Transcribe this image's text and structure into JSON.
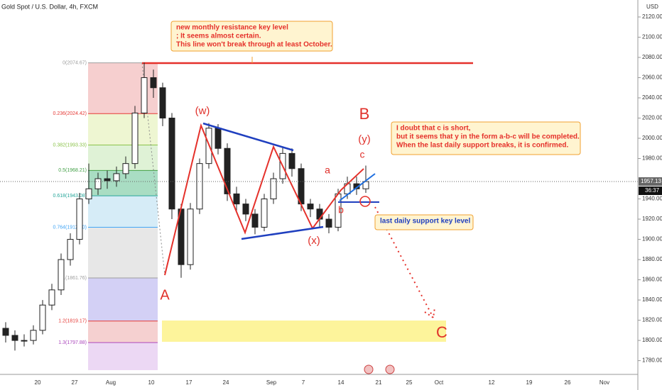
{
  "chart_data": {
    "type": "candlestick",
    "title": "Gold Spot / U.S. Dollar, 4h, FXCM",
    "currency": "USD",
    "ylim": [
      1770.6,
      2136.8
    ],
    "yticks": [
      {
        "value": 2120,
        "label": "2120.00"
      },
      {
        "value": 2100,
        "label": "2100.00"
      },
      {
        "value": 2080,
        "label": "2080.00"
      },
      {
        "value": 2060,
        "label": "2060.00"
      },
      {
        "value": 2040,
        "label": "2040.00"
      },
      {
        "value": 2020,
        "label": "2020.00"
      },
      {
        "value": 2000,
        "label": "2000.00"
      },
      {
        "value": 1980,
        "label": "1980.00"
      },
      {
        "value": 1940,
        "label": "1940.00"
      },
      {
        "value": 1920,
        "label": "1920.00"
      },
      {
        "value": 1900,
        "label": "1900.00"
      },
      {
        "value": 1880,
        "label": "1880.00"
      },
      {
        "value": 1860,
        "label": "1860.00"
      },
      {
        "value": 1840,
        "label": "1840.00"
      },
      {
        "value": 1820,
        "label": "1820.00"
      },
      {
        "value": 1800,
        "label": "1800.00"
      },
      {
        "value": 1780,
        "label": "1780.00"
      }
    ],
    "xticks": [
      "20",
      "27",
      "Aug",
      "10",
      "17",
      "24",
      "Sep",
      "7",
      "14",
      "21",
      "25",
      "Oct",
      "12",
      "19",
      "26",
      "Nov"
    ],
    "open": [
      1812,
      1805,
      1800,
      1800,
      1810,
      1835,
      1850,
      1880,
      1900,
      1940,
      1950,
      1960,
      1958,
      1965,
      1975,
      2025,
      2060,
      2050,
      2020,
      1930,
      1875,
      1930,
      1975,
      2010,
      1990,
      1945,
      1935,
      1925,
      1912,
      1940,
      1960,
      1985,
      1970,
      1935,
      1930,
      1920,
      1912,
      1945,
      1955,
      1950
    ],
    "high": [
      1818,
      1810,
      1806,
      1815,
      1840,
      1856,
      1886,
      1906,
      1946,
      1975,
      1966,
      1968,
      1972,
      1982,
      2032,
      2075,
      2068,
      2055,
      2025,
      1935,
      1936,
      1980,
      2015,
      2014,
      1995,
      1952,
      1940,
      1930,
      1945,
      1966,
      1992,
      1990,
      1975,
      1940,
      1935,
      1925,
      1950,
      1962,
      1962,
      1973
    ],
    "low": [
      1798,
      1790,
      1794,
      1796,
      1806,
      1830,
      1845,
      1874,
      1895,
      1935,
      1944,
      1950,
      1952,
      1960,
      1970,
      2020,
      2040,
      2012,
      1920,
      1862,
      1870,
      1925,
      1970,
      1984,
      1938,
      1928,
      1918,
      1905,
      1908,
      1935,
      1955,
      1962,
      1928,
      1922,
      1912,
      1906,
      1908,
      1940,
      1944,
      1946
    ],
    "close": [
      1805,
      1800,
      1800,
      1810,
      1835,
      1850,
      1880,
      1900,
      1940,
      1950,
      1960,
      1958,
      1965,
      1975,
      2025,
      2060,
      2050,
      2020,
      1930,
      1875,
      1930,
      1975,
      2010,
      1990,
      1945,
      1935,
      1925,
      1912,
      1940,
      1960,
      1985,
      1970,
      1935,
      1930,
      1920,
      1912,
      1945,
      1955,
      1950,
      1957.13
    ],
    "up_color": "#ffffff",
    "down_color": "#222222",
    "last_price": 1957.13,
    "countdown": "36:37",
    "fib_levels": [
      {
        "price": 2074.67,
        "label": "0(2074.67)",
        "color": "#9e9e9e",
        "fill": "#f6cfcf"
      },
      {
        "price": 2024.42,
        "label": "0.236(2024.42)",
        "color": "#e53935",
        "fill": "#eef6d2"
      },
      {
        "price": 1993.33,
        "label": "0.382(1993.33)",
        "color": "#8bc34a",
        "fill": "#dff2d6"
      },
      {
        "price": 1968.21,
        "label": "0.5(1968.21)",
        "color": "#43a047",
        "fill": "#a9ddc3"
      },
      {
        "price": 1943.08,
        "label": "0.618(1943.08)",
        "color": "#26a69a",
        "fill": "#d6ecf7"
      },
      {
        "price": 1912.0,
        "label": "0.764(1912.00)",
        "color": "#42a5f5",
        "fill": "#e7e7e7"
      },
      {
        "price": 1861.76,
        "label": "1(1861.76)",
        "color": "#9e9e9e",
        "fill": "#d3d0f5"
      },
      {
        "price": 1819.17,
        "label": "1.2(1819.17)",
        "color": "#e53935",
        "fill": "#f5d0d0"
      },
      {
        "price": 1797.88,
        "label": "1.3(1797.88)",
        "color": "#ab47bc",
        "fill": "#ecd8f4"
      }
    ],
    "annotations": [
      {
        "lines": [
          "new monthly resistance key level",
          "; It seems almost certain.",
          "This line won't break through at least October."
        ]
      },
      {
        "lines": [
          "I doubt that c is short,",
          "but it seems that y in the form a-b-c will be completed.",
          "When the last daily support breaks, it is confirmed."
        ]
      },
      {
        "lines": [
          "last daily support key level"
        ]
      }
    ],
    "wave_labels": [
      "(w)",
      "A",
      "(x)",
      "B",
      "(y)",
      "a",
      "b",
      "c",
      "C"
    ]
  }
}
